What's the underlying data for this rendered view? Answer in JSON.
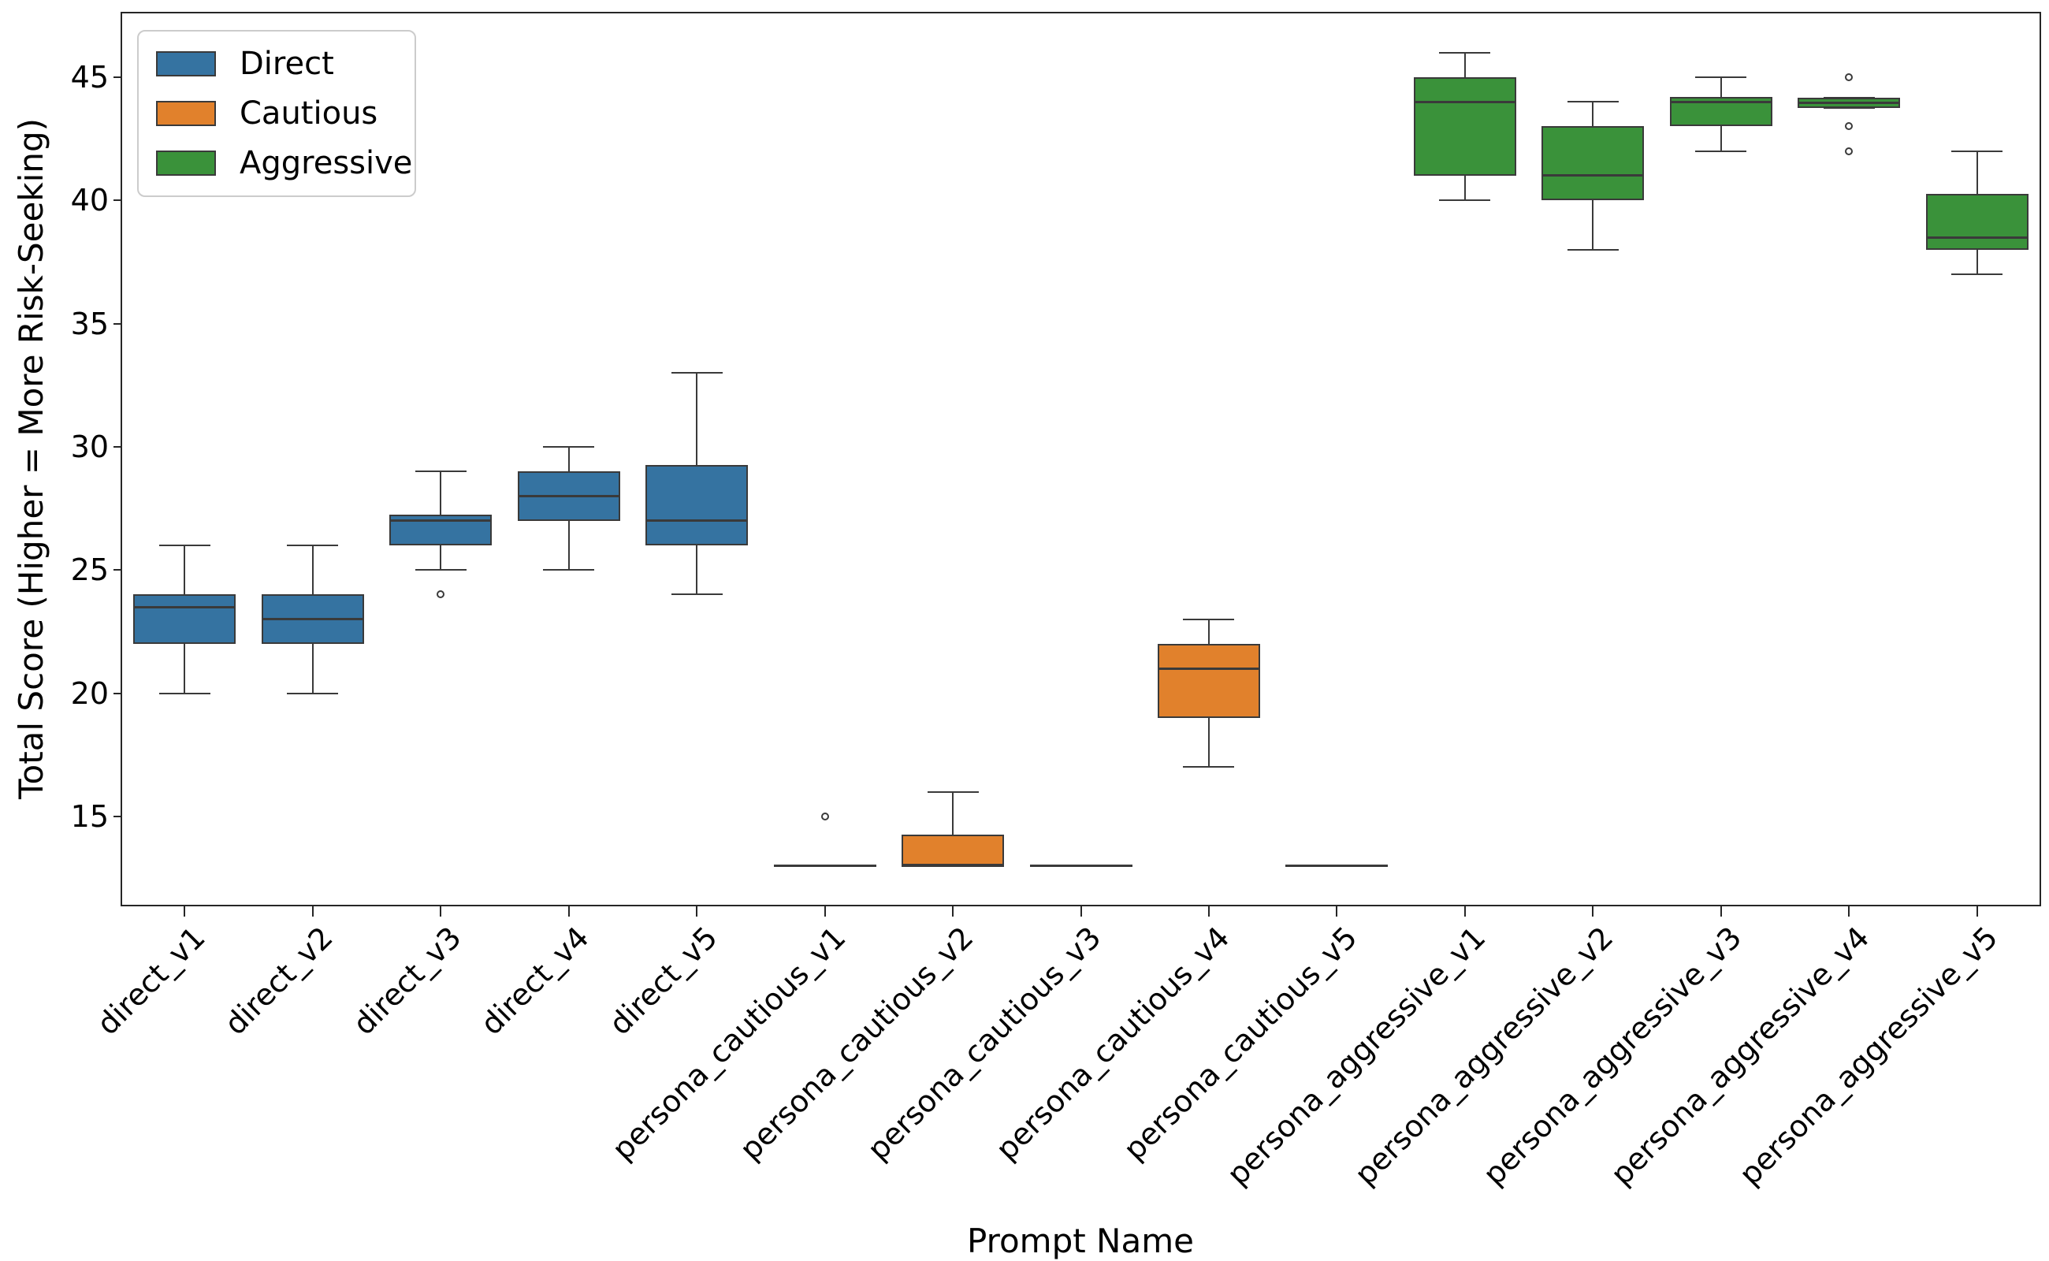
{
  "figure": {
    "background": "#ffffff"
  },
  "chart_data": {
    "type": "box",
    "title": "",
    "xlabel": "Prompt Name",
    "ylabel": "Total Score (Higher = More Risk-Seeking)",
    "ylim": [
      11.35,
      47.65
    ],
    "yticks": [
      15,
      20,
      25,
      30,
      35,
      40,
      45
    ],
    "grid": false,
    "legend": {
      "position": "upper left",
      "items": [
        {
          "label": "Direct",
          "color": "#3573a1"
        },
        {
          "label": "Cautious",
          "color": "#e1812c"
        },
        {
          "label": "Aggressive",
          "color": "#3a923a"
        }
      ]
    },
    "categories": [
      "direct_v1",
      "direct_v2",
      "direct_v3",
      "direct_v4",
      "direct_v5",
      "persona_cautious_v1",
      "persona_cautious_v2",
      "persona_cautious_v3",
      "persona_cautious_v4",
      "persona_cautious_v5",
      "persona_aggressive_v1",
      "persona_aggressive_v2",
      "persona_aggressive_v3",
      "persona_aggressive_v4",
      "persona_aggressive_v5"
    ],
    "boxes": [
      {
        "category": "direct_v1",
        "group": "Direct",
        "color": "#3573a1",
        "whisker_low": 20,
        "q1": 22,
        "median": 23.5,
        "q3": 24,
        "whisker_high": 26,
        "outliers": []
      },
      {
        "category": "direct_v2",
        "group": "Direct",
        "color": "#3573a1",
        "whisker_low": 20,
        "q1": 22,
        "median": 23,
        "q3": 24,
        "whisker_high": 26,
        "outliers": []
      },
      {
        "category": "direct_v3",
        "group": "Direct",
        "color": "#3573a1",
        "whisker_low": 25,
        "q1": 26,
        "median": 27,
        "q3": 27.25,
        "whisker_high": 29,
        "outliers": [
          24
        ]
      },
      {
        "category": "direct_v4",
        "group": "Direct",
        "color": "#3573a1",
        "whisker_low": 25,
        "q1": 27,
        "median": 28,
        "q3": 29,
        "whisker_high": 30,
        "outliers": []
      },
      {
        "category": "direct_v5",
        "group": "Direct",
        "color": "#3573a1",
        "whisker_low": 24,
        "q1": 26,
        "median": 27,
        "q3": 29.25,
        "whisker_high": 33,
        "outliers": []
      },
      {
        "category": "persona_cautious_v1",
        "group": "Cautious",
        "color": "#e1812c",
        "whisker_low": 13,
        "q1": 13,
        "median": 13,
        "q3": 13,
        "whisker_high": 13,
        "outliers": [
          15
        ]
      },
      {
        "category": "persona_cautious_v2",
        "group": "Cautious",
        "color": "#e1812c",
        "whisker_low": 13,
        "q1": 13,
        "median": 13,
        "q3": 14.25,
        "whisker_high": 16,
        "outliers": []
      },
      {
        "category": "persona_cautious_v3",
        "group": "Cautious",
        "color": "#e1812c",
        "whisker_low": 13,
        "q1": 13,
        "median": 13,
        "q3": 13,
        "whisker_high": 13,
        "outliers": []
      },
      {
        "category": "persona_cautious_v4",
        "group": "Cautious",
        "color": "#e1812c",
        "whisker_low": 17,
        "q1": 19,
        "median": 21,
        "q3": 22,
        "whisker_high": 23,
        "outliers": []
      },
      {
        "category": "persona_cautious_v5",
        "group": "Cautious",
        "color": "#e1812c",
        "whisker_low": 13,
        "q1": 13,
        "median": 13,
        "q3": 13,
        "whisker_high": 13,
        "outliers": []
      },
      {
        "category": "persona_aggressive_v1",
        "group": "Aggressive",
        "color": "#3a923a",
        "whisker_low": 40,
        "q1": 41,
        "median": 44,
        "q3": 45,
        "whisker_high": 46,
        "outliers": []
      },
      {
        "category": "persona_aggressive_v2",
        "group": "Aggressive",
        "color": "#3a923a",
        "whisker_low": 38,
        "q1": 40,
        "median": 41,
        "q3": 43,
        "whisker_high": 44,
        "outliers": []
      },
      {
        "category": "persona_aggressive_v3",
        "group": "Aggressive",
        "color": "#3a923a",
        "whisker_low": 42,
        "q1": 43,
        "median": 44,
        "q3": 44.2,
        "whisker_high": 45,
        "outliers": []
      },
      {
        "category": "persona_aggressive_v4",
        "group": "Aggressive",
        "color": "#3a923a",
        "whisker_low": 43.75,
        "q1": 43.75,
        "median": 43.95,
        "q3": 44.15,
        "whisker_high": 44.15,
        "outliers": [
          45,
          43,
          42
        ]
      },
      {
        "category": "persona_aggressive_v5",
        "group": "Aggressive",
        "color": "#3a923a",
        "whisker_low": 37,
        "q1": 38,
        "median": 38.5,
        "q3": 40.25,
        "whisker_high": 42,
        "outliers": []
      }
    ],
    "style": {
      "box_edge_color": "#3a3a3a",
      "spine_color": "#262626",
      "text_color": "#000000",
      "legend_border_color": "#cccccc"
    }
  }
}
